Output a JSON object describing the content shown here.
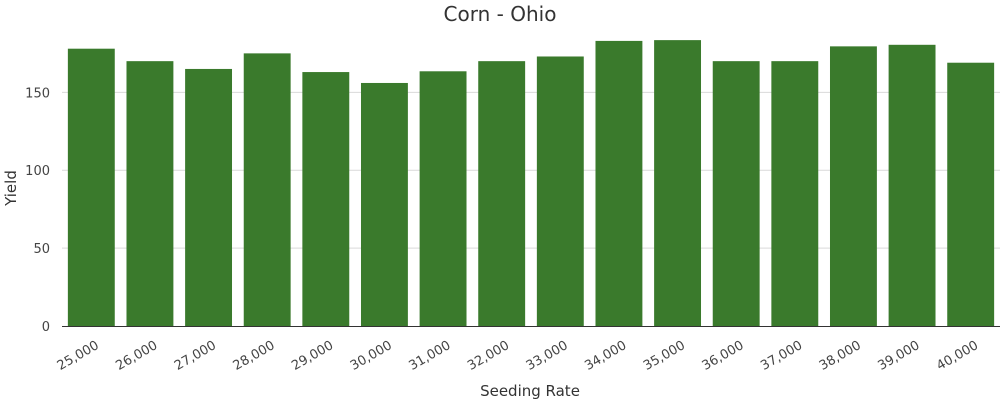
{
  "chart_data": {
    "type": "bar",
    "title": "Corn - Ohio",
    "xlabel": "Seeding Rate",
    "ylabel": "Yield",
    "categories": [
      "25,000",
      "26,000",
      "27,000",
      "28,000",
      "29,000",
      "30,000",
      "31,000",
      "32,000",
      "33,000",
      "34,000",
      "35,000",
      "36,000",
      "37,000",
      "38,000",
      "39,000",
      "40,000"
    ],
    "values": [
      178,
      170,
      165,
      175,
      163,
      156,
      163.5,
      170,
      173,
      183,
      183.5,
      170,
      170,
      179.5,
      180.5,
      169
    ],
    "ylim": [
      0,
      190
    ],
    "yticks": [
      0,
      50,
      100,
      150
    ],
    "grid": true,
    "bar_color": "#3a7a2c"
  }
}
